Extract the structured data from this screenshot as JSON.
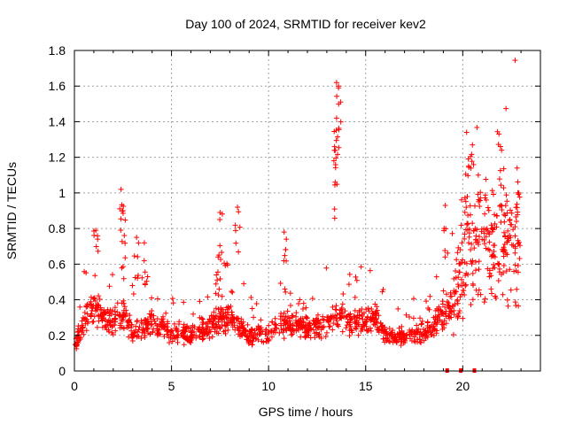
{
  "chart_data": {
    "type": "scatter",
    "title": "Day 100 of 2024, SRMTID for receiver kev2",
    "xlabel": "GPS time / hours",
    "ylabel": "SRMTID / TECUs",
    "xlim": [
      0,
      24
    ],
    "ylim": [
      0,
      1.8
    ],
    "x_ticks": [
      0,
      5,
      10,
      15,
      20
    ],
    "x_tick_labels": [
      "0",
      "5",
      "10",
      "15",
      "20"
    ],
    "y_ticks": [
      0,
      0.2,
      0.4,
      0.6,
      0.8,
      1.0,
      1.2,
      1.4,
      1.6,
      1.8
    ],
    "y_tick_labels": [
      "0",
      "0.2",
      "0.4",
      "0.6",
      "0.8",
      "1",
      "1.2",
      "1.4",
      "1.6",
      "1.8"
    ],
    "grid": true,
    "marker": "plus",
    "color": "#ff0000",
    "series": [
      {
        "name": "SRMTID",
        "profile": [
          [
            0.0,
            0.14
          ],
          [
            0.5,
            0.28
          ],
          [
            1.0,
            0.36
          ],
          [
            1.5,
            0.3
          ],
          [
            2.0,
            0.28
          ],
          [
            2.5,
            0.32
          ],
          [
            3.0,
            0.22
          ],
          [
            3.5,
            0.24
          ],
          [
            4.0,
            0.27
          ],
          [
            5.0,
            0.22
          ],
          [
            6.0,
            0.2
          ],
          [
            7.0,
            0.24
          ],
          [
            7.5,
            0.3
          ],
          [
            8.0,
            0.3
          ],
          [
            8.5,
            0.26
          ],
          [
            9.0,
            0.2
          ],
          [
            10.0,
            0.21
          ],
          [
            10.5,
            0.25
          ],
          [
            11.0,
            0.27
          ],
          [
            12.0,
            0.24
          ],
          [
            13.0,
            0.25
          ],
          [
            13.5,
            0.34
          ],
          [
            14.0,
            0.27
          ],
          [
            15.0,
            0.28
          ],
          [
            15.5,
            0.3
          ],
          [
            16.0,
            0.21
          ],
          [
            17.0,
            0.18
          ],
          [
            18.0,
            0.22
          ],
          [
            18.5,
            0.26
          ],
          [
            19.0,
            0.32
          ],
          [
            19.5,
            0.4
          ],
          [
            20.0,
            0.55
          ],
          [
            20.5,
            0.68
          ],
          [
            21.0,
            0.78
          ],
          [
            21.5,
            0.72
          ],
          [
            22.0,
            0.66
          ],
          [
            22.5,
            0.68
          ],
          [
            22.9,
            0.7
          ]
        ],
        "peaks": [
          {
            "x": 1.1,
            "y": 0.79
          },
          {
            "x": 2.4,
            "y": 1.02
          },
          {
            "x": 2.5,
            "y": 0.9
          },
          {
            "x": 3.2,
            "y": 0.75
          },
          {
            "x": 3.6,
            "y": 0.72
          },
          {
            "x": 7.4,
            "y": 0.64
          },
          {
            "x": 7.5,
            "y": 0.89
          },
          {
            "x": 8.4,
            "y": 0.92
          },
          {
            "x": 10.8,
            "y": 0.78
          },
          {
            "x": 13.4,
            "y": 1.26
          },
          {
            "x": 13.5,
            "y": 1.42
          },
          {
            "x": 13.5,
            "y": 1.62
          },
          {
            "x": 13.6,
            "y": 1.6
          },
          {
            "x": 20.2,
            "y": 1.34
          },
          {
            "x": 20.5,
            "y": 1.27
          },
          {
            "x": 20.3,
            "y": 1.15
          },
          {
            "x": 22.0,
            "y": 1.24
          },
          {
            "x": 22.8,
            "y": 1.14
          },
          {
            "x": 19.1,
            "y": 0.93
          },
          {
            "x": 20.8,
            "y": 1.1
          }
        ],
        "zero_markers": [
          19.2,
          19.9,
          20.6
        ]
      }
    ]
  }
}
